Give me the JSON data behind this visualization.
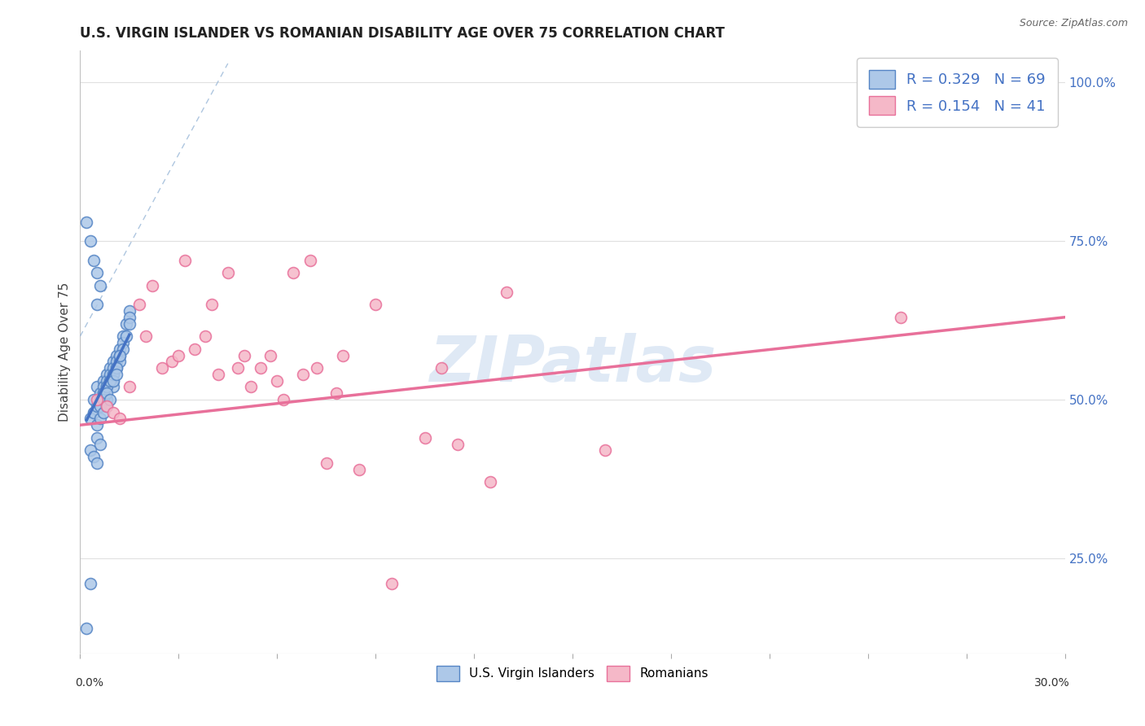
{
  "title": "U.S. VIRGIN ISLANDER VS ROMANIAN DISABILITY AGE OVER 75 CORRELATION CHART",
  "source": "Source: ZipAtlas.com",
  "ylabel": "Disability Age Over 75",
  "xmin": 0.0,
  "xmax": 30.0,
  "ymin": 10.0,
  "ymax": 105.0,
  "yticks": [
    25.0,
    50.0,
    75.0,
    100.0
  ],
  "blue_R": 0.329,
  "blue_N": 69,
  "pink_R": 0.154,
  "pink_N": 41,
  "blue_color": "#adc8e8",
  "pink_color": "#f5b8c8",
  "blue_edge_color": "#5585c5",
  "pink_edge_color": "#e8709a",
  "blue_line_color": "#4472c4",
  "pink_line_color": "#e8709a",
  "diag_line_color": "#9ab8d8",
  "legend_label_blue": "U.S. Virgin Islanders",
  "legend_label_pink": "Romanians",
  "watermark": "ZIPatlas",
  "blue_scatter_x": [
    0.2,
    0.3,
    0.4,
    0.4,
    0.5,
    0.5,
    0.5,
    0.6,
    0.6,
    0.6,
    0.7,
    0.7,
    0.7,
    0.7,
    0.8,
    0.8,
    0.8,
    0.8,
    0.9,
    0.9,
    0.9,
    1.0,
    1.0,
    1.0,
    1.0,
    1.0,
    1.1,
    1.1,
    1.1,
    1.2,
    1.2,
    1.2,
    1.3,
    1.3,
    1.3,
    1.4,
    1.4,
    1.5,
    1.5,
    1.5,
    0.3,
    0.4,
    0.5,
    0.6,
    0.6,
    0.7,
    0.7,
    0.8,
    0.8,
    0.9,
    1.0,
    1.0,
    1.1,
    1.1,
    1.2,
    0.5,
    0.6,
    0.7,
    0.8,
    0.9,
    0.5,
    0.6,
    0.3,
    0.4,
    0.5,
    0.2,
    0.3,
    0.4,
    0.6
  ],
  "blue_scatter_y": [
    14,
    21,
    50,
    48,
    70,
    65,
    52,
    51,
    50,
    49,
    53,
    52,
    51,
    50,
    54,
    53,
    52,
    50,
    55,
    54,
    53,
    56,
    55,
    54,
    53,
    52,
    57,
    56,
    55,
    58,
    57,
    56,
    60,
    59,
    58,
    62,
    60,
    64,
    63,
    62,
    47,
    48,
    49,
    50,
    49,
    51,
    50,
    52,
    51,
    53,
    54,
    53,
    55,
    54,
    57,
    46,
    47,
    48,
    49,
    50,
    44,
    43,
    42,
    41,
    40,
    78,
    75,
    72,
    68
  ],
  "pink_scatter_x": [
    0.5,
    0.8,
    1.0,
    1.2,
    1.5,
    1.8,
    2.0,
    2.2,
    2.5,
    2.8,
    3.0,
    3.2,
    3.5,
    3.8,
    4.0,
    4.2,
    4.5,
    4.8,
    5.0,
    5.2,
    5.5,
    5.8,
    6.0,
    6.2,
    6.5,
    6.8,
    7.0,
    7.2,
    7.5,
    7.8,
    8.0,
    8.5,
    9.0,
    9.5,
    10.5,
    11.0,
    11.5,
    12.5,
    13.0,
    16.0,
    25.0
  ],
  "pink_scatter_y": [
    50,
    49,
    48,
    47,
    52,
    65,
    60,
    68,
    55,
    56,
    57,
    72,
    58,
    60,
    65,
    54,
    70,
    55,
    57,
    52,
    55,
    57,
    53,
    50,
    70,
    54,
    72,
    55,
    40,
    51,
    57,
    39,
    65,
    21,
    44,
    55,
    43,
    37,
    67,
    42,
    63
  ],
  "blue_trend_x0": 0.2,
  "blue_trend_x1": 1.5,
  "pink_trend_x0": 0.0,
  "pink_trend_x1": 30.0,
  "pink_trend_y0": 46.0,
  "pink_trend_y1": 63.0,
  "diag_x0": 0.0,
  "diag_y0": 60.0,
  "diag_x1": 4.5,
  "diag_y1": 103.0
}
